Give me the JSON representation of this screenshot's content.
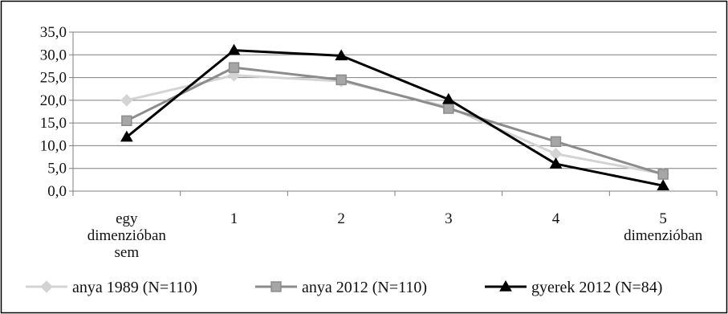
{
  "chart_data": {
    "type": "line",
    "categories": [
      [
        "egy",
        "dimenzióban",
        "sem"
      ],
      [
        "1"
      ],
      [
        "2"
      ],
      [
        "3"
      ],
      [
        "4"
      ],
      [
        "5",
        "dimenzióban"
      ]
    ],
    "y_ticks": [
      "0,0",
      "5,0",
      "10,0",
      "15,0",
      "20,0",
      "25,0",
      "30,0",
      "35,0"
    ],
    "ylim": [
      0,
      35
    ],
    "y_step": 5,
    "grid": true,
    "legend_position": "bottom",
    "series": [
      {
        "name": "anya 1989 (N=110)",
        "marker": "diamond",
        "color": "#d4d4d4",
        "values": [
          20.0,
          25.5,
          24.2,
          18.5,
          8.2,
          3.8
        ]
      },
      {
        "name": "anya 2012 (N=110)",
        "marker": "square",
        "color": "#8c8c8c",
        "values": [
          15.5,
          27.2,
          24.5,
          18.2,
          10.9,
          3.7
        ]
      },
      {
        "name": "gyerek 2012 (N=84)",
        "marker": "triangle",
        "color": "#000000",
        "values": [
          11.9,
          31.0,
          29.8,
          20.2,
          6.0,
          1.2
        ]
      }
    ]
  }
}
